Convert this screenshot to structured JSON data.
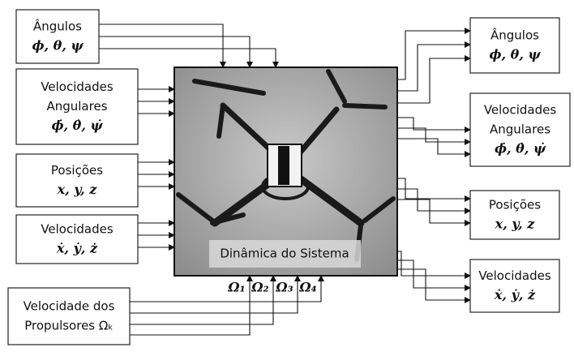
{
  "left_boxes": [
    {
      "label_lines": [
        "Ângulos"
      ],
      "symbols": "ϕ, θ, ψ"
    },
    {
      "label_lines": [
        "Velocidades",
        "Angulares"
      ],
      "symbols": "ϕ̇, θ̇, ψ̇"
    },
    {
      "label_lines": [
        "Posições"
      ],
      "symbols": "x, y, z"
    },
    {
      "label_lines": [
        "Velocidades"
      ],
      "symbols": "ẋ, ẏ, ż"
    }
  ],
  "input_box": {
    "label_lines": [
      "Velocidade dos",
      "Propulsores Ωₖ"
    ]
  },
  "system": {
    "label": "Dinâmica do Sistema",
    "inputs": [
      "Ω₁",
      "Ω₂",
      "Ω₃",
      "Ω₄"
    ]
  },
  "right_boxes": [
    {
      "label_lines": [
        "Ângulos"
      ],
      "symbols": "ϕ, θ, ψ"
    },
    {
      "label_lines": [
        "Velocidades",
        "Angulares"
      ],
      "symbols": "ϕ̇, θ̇, ψ̇"
    },
    {
      "label_lines": [
        "Posições"
      ],
      "symbols": "x, y, z"
    },
    {
      "label_lines": [
        "Velocidades"
      ],
      "symbols": "ẋ, ẏ, ż"
    }
  ]
}
